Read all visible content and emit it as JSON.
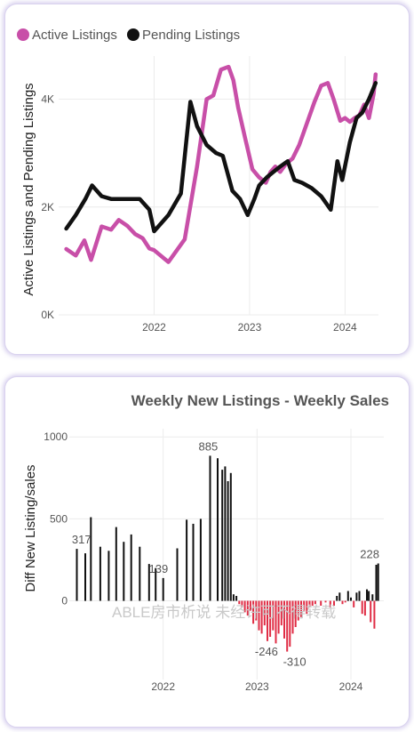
{
  "chart_data": [
    {
      "type": "line",
      "legend": [
        "Active Listings",
        "Pending Listings"
      ],
      "legend_position": "top-left",
      "ylabel": "Active Listings and Pending Listings",
      "xlabel": "",
      "yticks": [
        "0K",
        "2K",
        "4K"
      ],
      "xticks": [
        "2022",
        "2023",
        "2024"
      ],
      "ylim": [
        0,
        4800
      ],
      "xlim": [
        2021.0,
        2024.35
      ],
      "grid": true,
      "colors": {
        "active": "#c84fa8",
        "pending": "#111111"
      },
      "series": [
        {
          "name": "Active Listings",
          "x": [
            2021.08,
            2021.18,
            2021.27,
            2021.34,
            2021.45,
            2021.55,
            2021.63,
            2021.72,
            2021.8,
            2021.88,
            2021.95,
            2022.0,
            2022.15,
            2022.32,
            2022.45,
            2022.55,
            2022.62,
            2022.7,
            2022.78,
            2022.83,
            2022.88,
            2022.95,
            2023.03,
            2023.1,
            2023.17,
            2023.22,
            2023.27,
            2023.32,
            2023.38,
            2023.45,
            2023.52,
            2023.6,
            2023.68,
            2023.75,
            2023.82,
            2023.88,
            2023.95,
            2024.0,
            2024.05,
            2024.1,
            2024.15,
            2024.2,
            2024.25,
            2024.3,
            2024.32
          ],
          "y": [
            1220,
            1100,
            1380,
            1020,
            1640,
            1580,
            1760,
            1650,
            1500,
            1420,
            1230,
            1200,
            980,
            1400,
            2750,
            4000,
            4070,
            4550,
            4600,
            4350,
            3850,
            3300,
            2700,
            2550,
            2450,
            2650,
            2750,
            2650,
            2800,
            2900,
            3150,
            3550,
            3950,
            4250,
            4300,
            4000,
            3600,
            3650,
            3580,
            3650,
            3700,
            3900,
            3650,
            4100,
            4460
          ]
        },
        {
          "name": "Pending Listings",
          "x": [
            2021.08,
            2021.18,
            2021.28,
            2021.35,
            2021.45,
            2021.55,
            2021.65,
            2021.75,
            2021.85,
            2021.95,
            2022.0,
            2022.15,
            2022.28,
            2022.38,
            2022.45,
            2022.55,
            2022.65,
            2022.72,
            2022.82,
            2022.9,
            2022.98,
            2023.05,
            2023.1,
            2023.18,
            2023.25,
            2023.32,
            2023.4,
            2023.47,
            2023.55,
            2023.65,
            2023.75,
            2023.85,
            2023.92,
            2023.97,
            2024.05,
            2024.12,
            2024.18,
            2024.25,
            2024.32
          ],
          "y": [
            1600,
            1850,
            2150,
            2400,
            2200,
            2150,
            2150,
            2150,
            2150,
            1950,
            1550,
            1850,
            2250,
            3950,
            3500,
            3150,
            3000,
            2950,
            2300,
            2150,
            1850,
            2150,
            2400,
            2550,
            2650,
            2750,
            2850,
            2500,
            2450,
            2350,
            2200,
            1950,
            2850,
            2500,
            3200,
            3650,
            3750,
            4000,
            4300
          ]
        }
      ]
    },
    {
      "type": "bar",
      "title": "Weekly New Listings - Weekly Sales",
      "ylabel": "Diff New Listing/sales",
      "xlabel": "",
      "yticks": [
        "0",
        "500",
        "1000"
      ],
      "xticks": [
        "2022",
        "2023",
        "2024"
      ],
      "ylim": [
        -480,
        1050
      ],
      "xlim": [
        2021.0,
        2024.35
      ],
      "grid": true,
      "colors": {
        "positive": "#111111",
        "negative": "#e02d45"
      },
      "data_labels": [
        {
          "x": 2021.13,
          "y": 317,
          "text": "317"
        },
        {
          "x": 2021.95,
          "y": 139,
          "text": "139"
        },
        {
          "x": 2022.48,
          "y": 885,
          "text": "885"
        },
        {
          "x": 2023.1,
          "y": -246,
          "text": "-246"
        },
        {
          "x": 2023.4,
          "y": -310,
          "text": "-310"
        },
        {
          "x": 2024.2,
          "y": 228,
          "text": "228"
        }
      ],
      "x": [
        2021.08,
        2021.17,
        2021.23,
        2021.33,
        2021.42,
        2021.5,
        2021.58,
        2021.66,
        2021.75,
        2021.85,
        2021.92,
        2022.0,
        2022.15,
        2022.25,
        2022.32,
        2022.4,
        2022.5,
        2022.58,
        2022.63,
        2022.66,
        2022.69,
        2022.72,
        2022.75,
        2022.78,
        2022.81,
        2022.84,
        2022.87,
        2022.9,
        2022.93,
        2022.96,
        2022.99,
        2023.02,
        2023.05,
        2023.08,
        2023.11,
        2023.14,
        2023.17,
        2023.2,
        2023.23,
        2023.26,
        2023.29,
        2023.32,
        2023.35,
        2023.38,
        2023.41,
        2023.44,
        2023.47,
        2023.5,
        2023.53,
        2023.56,
        2023.59,
        2023.62,
        2023.68,
        2023.73,
        2023.78,
        2023.82,
        2023.85,
        2023.88,
        2023.91,
        2023.94,
        2023.97,
        2024.0,
        2024.03,
        2024.06,
        2024.09,
        2024.12,
        2024.15,
        2024.17,
        2024.19,
        2024.21,
        2024.23,
        2024.25,
        2024.27,
        2024.29
      ],
      "values": [
        317,
        290,
        510,
        330,
        305,
        450,
        360,
        405,
        330,
        225,
        200,
        139,
        320,
        495,
        470,
        500,
        885,
        870,
        800,
        820,
        730,
        780,
        40,
        30,
        -20,
        -40,
        -70,
        -90,
        -60,
        -140,
        -120,
        -180,
        -200,
        -150,
        -246,
        -220,
        -180,
        -260,
        -200,
        -150,
        -230,
        -310,
        -280,
        -200,
        -160,
        -120,
        -100,
        -60,
        -80,
        -40,
        -30,
        -20,
        -30,
        -10,
        -40,
        -30,
        30,
        50,
        -20,
        -10,
        60,
        20,
        -40,
        50,
        60,
        -80,
        -90,
        70,
        60,
        -130,
        40,
        -170,
        220,
        228
      ]
    }
  ],
  "watermark": "ABLE房市析说 未经许可不得转载"
}
